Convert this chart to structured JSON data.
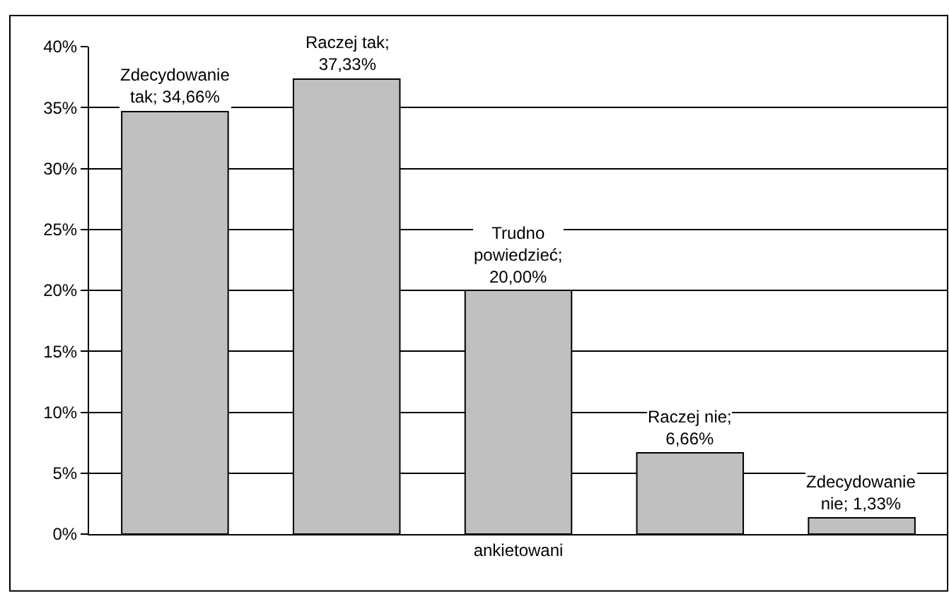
{
  "chart_data": {
    "type": "bar",
    "categories": [
      "ankietowani"
    ],
    "series": [
      {
        "color": "#c0c0c0",
        "values": [
          34.66
        ],
        "value_labels": [
          "Zdecydowanie tak; 34,66%"
        ]
      },
      {
        "color": "#c0c0c0",
        "values": [
          37.33
        ],
        "value_labels": [
          "Raczej tak; 37,33%"
        ]
      },
      {
        "color": "#c0c0c0",
        "values": [
          20.0
        ],
        "value_labels": [
          "Trudno powiedzieć; 20,00%"
        ]
      },
      {
        "color": "#c0c0c0",
        "values": [
          6.66
        ],
        "value_labels": [
          "Raczej nie; 6,66%"
        ]
      },
      {
        "color": "#c0c0c0",
        "values": [
          1.33
        ],
        "value_labels": [
          "Zdecydowanie nie; 1,33%"
        ]
      }
    ],
    "ylim": [
      0,
      40
    ],
    "yticks": [
      {
        "value": 0,
        "label": "0%"
      },
      {
        "value": 5,
        "label": "5%"
      },
      {
        "value": 10,
        "label": "10%"
      },
      {
        "value": 15,
        "label": "15%"
      },
      {
        "value": 20,
        "label": "20%"
      },
      {
        "value": 25,
        "label": "25%"
      },
      {
        "value": 30,
        "label": "30%"
      },
      {
        "value": 35,
        "label": "35%"
      },
      {
        "value": 40,
        "label": "40%"
      }
    ],
    "grid": "y"
  }
}
